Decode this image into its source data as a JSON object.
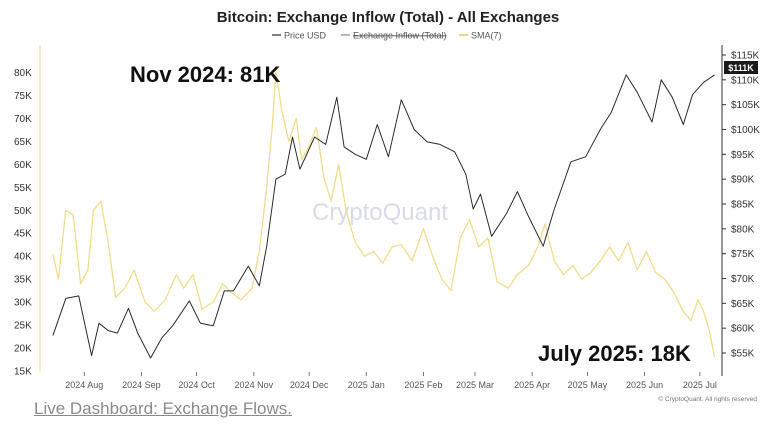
{
  "chart_data": {
    "type": "line",
    "title": "Bitcoin: Exchange Inflow (Total) - All Exchanges",
    "legend": {
      "placement": "top-center",
      "entries": [
        "Price USD",
        "Exchange Inflow (Total)",
        "SMA(7)"
      ]
    },
    "x_ticks": [
      "2024 Aug",
      "2024 Sep",
      "2024 Oct",
      "2024 Nov",
      "2024 Dec",
      "2025 Jan",
      "2025 Feb",
      "2025 Mar",
      "2025 Apr",
      "2025 May",
      "2025 Jun",
      "2025 Jul"
    ],
    "left_axis": {
      "ylim": [
        15000,
        82000
      ],
      "ticks": [
        "80K",
        "75K",
        "70K",
        "65K",
        "60K",
        "55K",
        "50K",
        "45K",
        "40K",
        "35K",
        "30K",
        "25K",
        "20K",
        "15K"
      ]
    },
    "right_axis": {
      "ylim": [
        52000,
        116000
      ],
      "ticks": [
        "$115K",
        "$110K",
        "$105K",
        "$100K",
        "$95K",
        "$90K",
        "$85K",
        "$80K",
        "$75K",
        "$70K",
        "$65K",
        "$60K",
        "$55K"
      ]
    },
    "grid": false,
    "series": [
      {
        "name": "Price USD",
        "color": "#2b2b2b",
        "axis": "right",
        "points": [
          [
            "2024-07-15",
            58500
          ],
          [
            "2024-07-22",
            66000
          ],
          [
            "2024-07-29",
            66500
          ],
          [
            "2024-08-05",
            54500
          ],
          [
            "2024-08-09",
            61000
          ],
          [
            "2024-08-14",
            59500
          ],
          [
            "2024-08-19",
            59000
          ],
          [
            "2024-08-25",
            64000
          ],
          [
            "2024-08-30",
            59000
          ],
          [
            "2024-09-06",
            54000
          ],
          [
            "2024-09-12",
            58000
          ],
          [
            "2024-09-18",
            60500
          ],
          [
            "2024-09-27",
            65500
          ],
          [
            "2024-10-03",
            61000
          ],
          [
            "2024-10-10",
            60500
          ],
          [
            "2024-10-16",
            67500
          ],
          [
            "2024-10-21",
            67500
          ],
          [
            "2024-10-29",
            72500
          ],
          [
            "2024-11-04",
            68500
          ],
          [
            "2024-11-08",
            76500
          ],
          [
            "2024-11-13",
            90000
          ],
          [
            "2024-11-18",
            91000
          ],
          [
            "2024-11-22",
            98500
          ],
          [
            "2024-11-26",
            92000
          ],
          [
            "2024-12-04",
            98500
          ],
          [
            "2024-12-10",
            97000
          ],
          [
            "2024-12-16",
            106500
          ],
          [
            "2024-12-20",
            96500
          ],
          [
            "2024-12-26",
            95000
          ],
          [
            "2025-01-01",
            94000
          ],
          [
            "2025-01-07",
            101000
          ],
          [
            "2025-01-13",
            94500
          ],
          [
            "2025-01-20",
            106000
          ],
          [
            "2025-01-27",
            100000
          ],
          [
            "2025-02-03",
            97500
          ],
          [
            "2025-02-10",
            97000
          ],
          [
            "2025-02-18",
            95500
          ],
          [
            "2025-02-24",
            91000
          ],
          [
            "2025-02-28",
            84000
          ],
          [
            "2025-03-04",
            87000
          ],
          [
            "2025-03-10",
            78500
          ],
          [
            "2025-03-18",
            83000
          ],
          [
            "2025-03-24",
            87500
          ],
          [
            "2025-03-30",
            82500
          ],
          [
            "2025-04-07",
            76500
          ],
          [
            "2025-04-13",
            84000
          ],
          [
            "2025-04-22",
            93500
          ],
          [
            "2025-04-30",
            94500
          ],
          [
            "2025-05-08",
            100000
          ],
          [
            "2025-05-14",
            103500
          ],
          [
            "2025-05-22",
            111000
          ],
          [
            "2025-05-28",
            107500
          ],
          [
            "2025-06-05",
            101500
          ],
          [
            "2025-06-10",
            110000
          ],
          [
            "2025-06-16",
            106500
          ],
          [
            "2025-06-22",
            101000
          ],
          [
            "2025-06-27",
            107000
          ],
          [
            "2025-07-03",
            109500
          ],
          [
            "2025-07-09",
            111000
          ]
        ]
      },
      {
        "name": "SMA(7)",
        "color": "#f2dc8c",
        "axis": "left",
        "points": [
          [
            "2024-07-15",
            40500
          ],
          [
            "2024-07-18",
            35000
          ],
          [
            "2024-07-22",
            50000
          ],
          [
            "2024-07-26",
            49000
          ],
          [
            "2024-07-30",
            34000
          ],
          [
            "2024-08-03",
            37000
          ],
          [
            "2024-08-06",
            50000
          ],
          [
            "2024-08-10",
            52000
          ],
          [
            "2024-08-14",
            43000
          ],
          [
            "2024-08-18",
            31000
          ],
          [
            "2024-08-23",
            33000
          ],
          [
            "2024-08-28",
            37000
          ],
          [
            "2024-09-03",
            30000
          ],
          [
            "2024-09-08",
            28000
          ],
          [
            "2024-09-14",
            30500
          ],
          [
            "2024-09-20",
            36000
          ],
          [
            "2024-09-24",
            33000
          ],
          [
            "2024-09-29",
            36000
          ],
          [
            "2024-10-04",
            28500
          ],
          [
            "2024-10-10",
            30000
          ],
          [
            "2024-10-15",
            34000
          ],
          [
            "2024-10-20",
            32000
          ],
          [
            "2024-10-25",
            30500
          ],
          [
            "2024-10-31",
            33000
          ],
          [
            "2024-11-04",
            41000
          ],
          [
            "2024-11-08",
            55000
          ],
          [
            "2024-11-11",
            68000
          ],
          [
            "2024-11-13",
            80500
          ],
          [
            "2024-11-16",
            72000
          ],
          [
            "2024-11-20",
            65000
          ],
          [
            "2024-11-24",
            70000
          ],
          [
            "2024-11-27",
            61000
          ],
          [
            "2024-12-01",
            64000
          ],
          [
            "2024-12-05",
            68000
          ],
          [
            "2024-12-09",
            57000
          ],
          [
            "2024-12-13",
            52000
          ],
          [
            "2024-12-17",
            60000
          ],
          [
            "2024-12-21",
            50000
          ],
          [
            "2024-12-26",
            43000
          ],
          [
            "2024-12-31",
            40000
          ],
          [
            "2025-01-05",
            41000
          ],
          [
            "2025-01-10",
            38500
          ],
          [
            "2025-01-15",
            42000
          ],
          [
            "2025-01-20",
            42500
          ],
          [
            "2025-01-26",
            39000
          ],
          [
            "2025-02-01",
            46000
          ],
          [
            "2025-02-06",
            40000
          ],
          [
            "2025-02-11",
            35000
          ],
          [
            "2025-02-16",
            32500
          ],
          [
            "2025-02-21",
            44000
          ],
          [
            "2025-02-26",
            48000
          ],
          [
            "2025-03-03",
            42000
          ],
          [
            "2025-03-08",
            44000
          ],
          [
            "2025-03-13",
            34500
          ],
          [
            "2025-03-19",
            33000
          ],
          [
            "2025-03-24",
            36000
          ],
          [
            "2025-03-30",
            38000
          ],
          [
            "2025-04-04",
            42000
          ],
          [
            "2025-04-08",
            47000
          ],
          [
            "2025-04-13",
            39000
          ],
          [
            "2025-04-18",
            36000
          ],
          [
            "2025-04-23",
            38000
          ],
          [
            "2025-04-28",
            35000
          ],
          [
            "2025-05-03",
            36500
          ],
          [
            "2025-05-08",
            39000
          ],
          [
            "2025-05-13",
            42000
          ],
          [
            "2025-05-18",
            39000
          ],
          [
            "2025-05-23",
            43000
          ],
          [
            "2025-05-28",
            37000
          ],
          [
            "2025-06-02",
            41000
          ],
          [
            "2025-06-07",
            36500
          ],
          [
            "2025-06-12",
            35000
          ],
          [
            "2025-06-17",
            32000
          ],
          [
            "2025-06-22",
            28000
          ],
          [
            "2025-06-26",
            26000
          ],
          [
            "2025-06-30",
            30500
          ],
          [
            "2025-07-03",
            28000
          ],
          [
            "2025-07-06",
            24000
          ],
          [
            "2025-07-09",
            18000
          ]
        ]
      }
    ],
    "annotations": [
      {
        "text": "Nov 2024: 81K"
      },
      {
        "text": "July 2025: 18K"
      }
    ],
    "price_badge": "$111K",
    "watermark": "CryptoQuant",
    "copyright": "© CryptoQuant. All rights reserved"
  },
  "footer": {
    "link_text": "Live Dashboard: Exchange Flows."
  }
}
